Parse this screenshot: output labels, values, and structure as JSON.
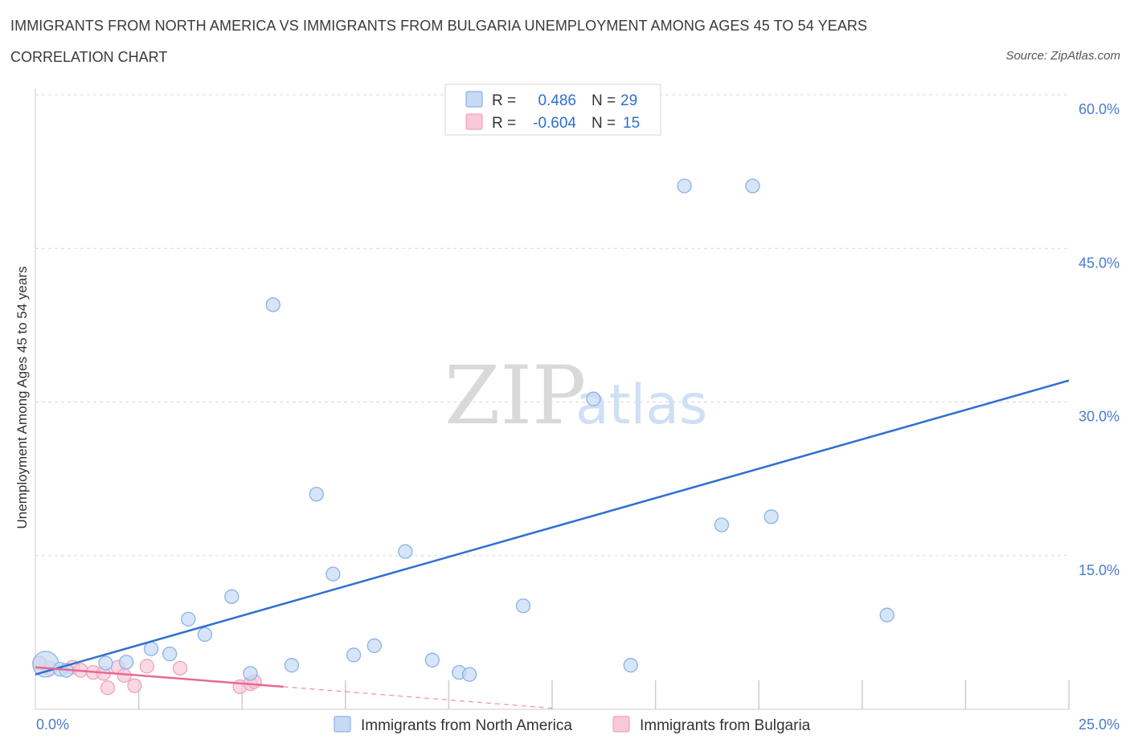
{
  "header": {
    "title": "IMMIGRANTS FROM NORTH AMERICA VS IMMIGRANTS FROM BULGARIA UNEMPLOYMENT AMONG AGES 45 TO 54 YEARS",
    "subtitle": "CORRELATION CHART",
    "source": "Source: ZipAtlas.com"
  },
  "watermark": {
    "zip": "ZIP",
    "atlas": "atlas"
  },
  "colors": {
    "blue": "#2f6fd0",
    "blue_fill": "#c5daf5",
    "blue_stroke": "#8ab2e6",
    "pink": "#e46a94",
    "pink_fill": "#f8c9d8",
    "pink_stroke": "#f0a2bd",
    "grid": "#d8d8d8",
    "axis_text": "#4a7bd0"
  },
  "chart_data": {
    "type": "scatter",
    "title": "IMMIGRANTS FROM NORTH AMERICA VS IMMIGRANTS FROM BULGARIA UNEMPLOYMENT AMONG AGES 45 TO 54 YEARS",
    "xlabel": "",
    "ylabel": "Unemployment Among Ages 45 to 54 years",
    "xlim": [
      0,
      25
    ],
    "ylim": [
      0,
      60
    ],
    "x_tick_labels": {
      "min": "0.0%",
      "max": "25.0%"
    },
    "y_ticks": [
      {
        "value": 15,
        "label": "15.0%"
      },
      {
        "value": 30,
        "label": "30.0%"
      },
      {
        "value": 45,
        "label": "45.0%"
      },
      {
        "value": 60,
        "label": "60.0%"
      }
    ],
    "x_minor_ticks": [
      2.5,
      5,
      7.5,
      10,
      12.5,
      15,
      17.5,
      20,
      22.5,
      25
    ],
    "legend": [
      {
        "series": "Immigrants from North America",
        "r_label": "R =",
        "r": "0.486",
        "n_label": "N =",
        "n": "29"
      },
      {
        "series": "Immigrants from Bulgaria",
        "r_label": "R =",
        "r": "-0.604",
        "n_label": "N =",
        "n": "15"
      }
    ],
    "series": [
      {
        "name": "Immigrants from North America",
        "color": "blue",
        "points": [
          {
            "x": 0.25,
            "y": 4.4,
            "big": true
          },
          {
            "x": 0.6,
            "y": 3.9
          },
          {
            "x": 0.75,
            "y": 3.8
          },
          {
            "x": 1.7,
            "y": 4.5
          },
          {
            "x": 2.2,
            "y": 4.6
          },
          {
            "x": 2.8,
            "y": 5.9
          },
          {
            "x": 3.25,
            "y": 5.4
          },
          {
            "x": 3.7,
            "y": 8.8
          },
          {
            "x": 4.1,
            "y": 7.3
          },
          {
            "x": 4.75,
            "y": 11.0
          },
          {
            "x": 5.2,
            "y": 3.5
          },
          {
            "x": 5.75,
            "y": 39.5
          },
          {
            "x": 6.2,
            "y": 4.3
          },
          {
            "x": 6.8,
            "y": 21.0
          },
          {
            "x": 7.2,
            "y": 13.2
          },
          {
            "x": 7.7,
            "y": 5.3
          },
          {
            "x": 8.2,
            "y": 6.2
          },
          {
            "x": 8.95,
            "y": 15.4
          },
          {
            "x": 9.6,
            "y": 4.8
          },
          {
            "x": 10.25,
            "y": 3.6
          },
          {
            "x": 10.5,
            "y": 3.4
          },
          {
            "x": 11.8,
            "y": 10.1
          },
          {
            "x": 13.5,
            "y": 30.3
          },
          {
            "x": 14.4,
            "y": 4.3
          },
          {
            "x": 15.7,
            "y": 51.1
          },
          {
            "x": 16.6,
            "y": 18.0
          },
          {
            "x": 17.35,
            "y": 51.1
          },
          {
            "x": 17.8,
            "y": 18.8
          },
          {
            "x": 20.6,
            "y": 9.2
          }
        ],
        "trend": {
          "x1": 0,
          "y1": 3.4,
          "x2": 25,
          "y2": 32.1
        }
      },
      {
        "name": "Immigrants from Bulgaria",
        "color": "pink",
        "points": [
          {
            "x": 0.1,
            "y": 4.5
          },
          {
            "x": 0.35,
            "y": 4.0
          },
          {
            "x": 0.9,
            "y": 4.1
          },
          {
            "x": 1.1,
            "y": 3.8
          },
          {
            "x": 1.4,
            "y": 3.6
          },
          {
            "x": 1.65,
            "y": 3.5
          },
          {
            "x": 1.75,
            "y": 2.1
          },
          {
            "x": 2.0,
            "y": 4.1
          },
          {
            "x": 2.15,
            "y": 3.3
          },
          {
            "x": 2.4,
            "y": 2.3
          },
          {
            "x": 2.7,
            "y": 4.2
          },
          {
            "x": 3.5,
            "y": 4.0
          },
          {
            "x": 4.95,
            "y": 2.2
          },
          {
            "x": 5.2,
            "y": 2.5
          },
          {
            "x": 5.3,
            "y": 2.7
          }
        ],
        "trend": {
          "x1": 0,
          "y1": 4.1,
          "x2": 6.0,
          "y2": 2.2
        },
        "trend_dashed": {
          "x1": 6.0,
          "y1": 2.2,
          "x2": 12.5,
          "y2": 0.1
        }
      }
    ]
  }
}
